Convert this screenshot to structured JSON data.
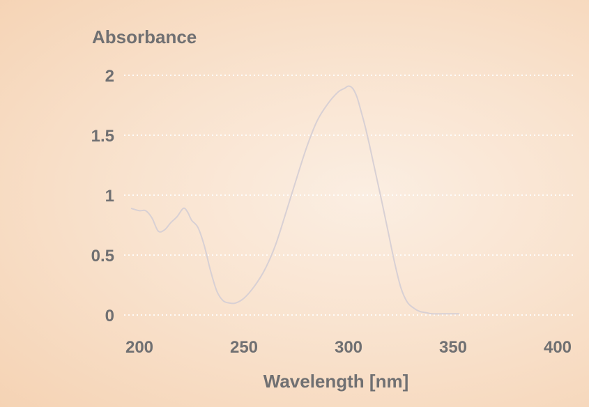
{
  "chart_data": {
    "type": "line",
    "title": "",
    "ylabel": "Absorbance",
    "xlabel": "Wavelength [nm]",
    "xlim": [
      200,
      400
    ],
    "ylim": [
      0,
      2
    ],
    "xticks": [
      "200",
      "250",
      "300",
      "350",
      "400"
    ],
    "yticks": [
      "0",
      "0.5",
      "1",
      "1.5",
      "2"
    ],
    "grid": "horizontal dotted",
    "colors": {
      "line": "#d8d0d4",
      "text": "#707072",
      "grid": "#ffffff"
    },
    "series": [
      {
        "x": [
          196,
          200,
          203,
          206,
          209,
          212,
          215,
          218,
          221,
          223,
          225,
          228,
          231,
          234,
          237,
          240,
          243,
          246,
          250,
          255,
          260,
          265,
          270,
          275,
          280,
          285,
          290,
          295,
          298,
          300,
          302,
          304,
          306,
          308,
          310,
          313,
          316,
          319,
          322,
          325,
          328,
          331,
          334,
          337,
          340,
          345,
          350,
          353
        ],
        "y": [
          0.89,
          0.87,
          0.87,
          0.81,
          0.7,
          0.71,
          0.77,
          0.82,
          0.89,
          0.86,
          0.79,
          0.73,
          0.58,
          0.37,
          0.2,
          0.12,
          0.1,
          0.1,
          0.14,
          0.24,
          0.38,
          0.58,
          0.85,
          1.13,
          1.4,
          1.62,
          1.76,
          1.86,
          1.89,
          1.91,
          1.89,
          1.82,
          1.7,
          1.57,
          1.42,
          1.18,
          0.94,
          0.69,
          0.44,
          0.23,
          0.11,
          0.06,
          0.03,
          0.02,
          0.01,
          0.01,
          0.01,
          0.01
        ]
      }
    ]
  }
}
